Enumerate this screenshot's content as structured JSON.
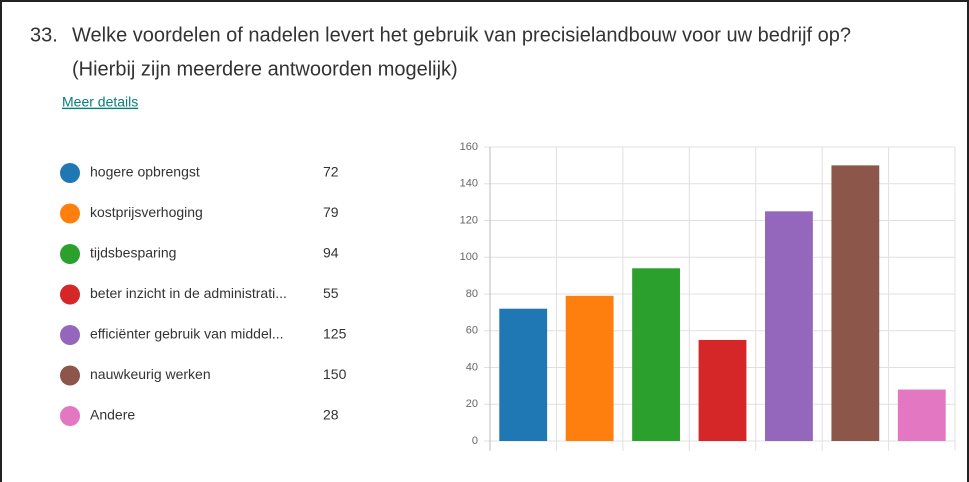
{
  "question": {
    "number": "33.",
    "line1": "Welke voordelen of nadelen levert het gebruik van precisielandbouw voor uw bedrijf op?",
    "line2": "(Hierbij zijn meerdere antwoorden mogelijk)"
  },
  "link": "Meer details",
  "chart_data": {
    "type": "bar",
    "categories": [
      "hogere opbrengst",
      "kostprijsverhoging",
      "tijdsbesparing",
      "beter inzicht in de administrati...",
      "efficiënter gebruik van middel...",
      "nauwkeurig werken",
      "Andere"
    ],
    "values": [
      72,
      79,
      94,
      55,
      125,
      150,
      28
    ],
    "colors": [
      "#1f77b4",
      "#ff7f0e",
      "#2ca02c",
      "#d62728",
      "#9467bd",
      "#8c564b",
      "#e377c2"
    ],
    "ylim": [
      0,
      160
    ],
    "yticks": [
      0,
      20,
      40,
      60,
      80,
      100,
      120,
      140,
      160
    ],
    "grid": true
  }
}
